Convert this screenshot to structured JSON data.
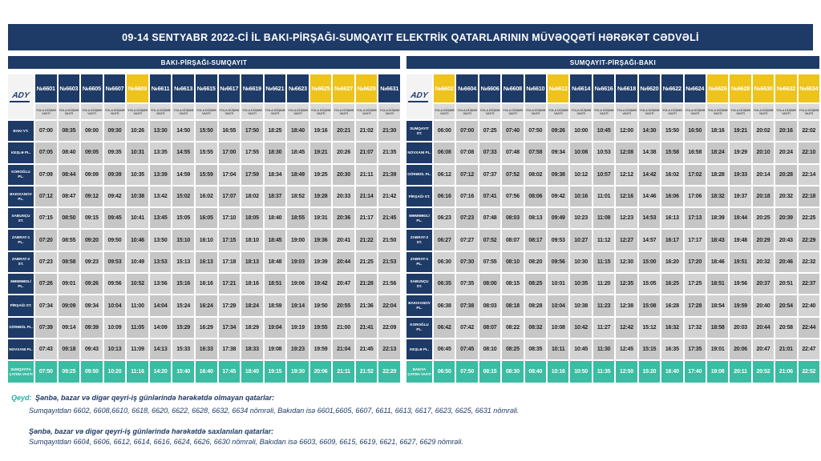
{
  "title": "09-14 SENTYABR 2022-Cİ İL BAKI-PİRŞAĞI-SUMQAYIT ELEKTRİK QATARLARININ MÜVƏQQƏTİ HƏRƏKƏT CƏDVƏLİ",
  "logo": "ADY",
  "departure_label": "YOLA DÜŞMƏ VAXTI",
  "colors": {
    "navy": "#1e3a66",
    "yellow": "#eec31c",
    "teal": "#3bbca3",
    "teal_dark": "#28b0a1",
    "cell_gray_light": "#d3d3d3",
    "cell_gray_dark": "#c6c6c6"
  },
  "tables": [
    {
      "header": "BAKI-PİRŞAĞI-SUMQAYIT",
      "trains": [
        {
          "number": "№6601",
          "highlight": false
        },
        {
          "number": "№6603",
          "highlight": false
        },
        {
          "number": "№6605",
          "highlight": false
        },
        {
          "number": "№6607",
          "highlight": false
        },
        {
          "number": "№6609",
          "highlight": true
        },
        {
          "number": "№6611",
          "highlight": false
        },
        {
          "number": "№6613",
          "highlight": false
        },
        {
          "number": "№6615",
          "highlight": false
        },
        {
          "number": "№6617",
          "highlight": false
        },
        {
          "number": "№6619",
          "highlight": false
        },
        {
          "number": "№6621",
          "highlight": false
        },
        {
          "number": "№6623",
          "highlight": false
        },
        {
          "number": "№6625",
          "highlight": true
        },
        {
          "number": "№6627",
          "highlight": true
        },
        {
          "number": "№6629",
          "highlight": true
        },
        {
          "number": "№6631",
          "highlight": false
        }
      ],
      "rows": [
        {
          "station": "BAKI VT.",
          "times": [
            "07:00",
            "08:35",
            "09:00",
            "09:30",
            "10:26",
            "13:30",
            "14:50",
            "15:50",
            "16:55",
            "17:50",
            "18:25",
            "18:40",
            "19:16",
            "20:21",
            "21:02",
            "21:30"
          ]
        },
        {
          "station": "KEŞLƏ PL.",
          "times": [
            "07:05",
            "08:40",
            "09:05",
            "09:35",
            "10:31",
            "13:35",
            "14:55",
            "15:55",
            "17:00",
            "17:55",
            "18:30",
            "18:45",
            "19:21",
            "20:26",
            "21:07",
            "21:35"
          ]
        },
        {
          "station": "KOROĞLU PL.",
          "times": [
            "07:09",
            "08:44",
            "09:09",
            "09:39",
            "10:35",
            "13:39",
            "14:59",
            "15:59",
            "17:04",
            "17:59",
            "18:34",
            "18:49",
            "19:25",
            "20:30",
            "21:11",
            "21:39"
          ]
        },
        {
          "station": "BAKIXANOV PL.",
          "times": [
            "07:12",
            "08:47",
            "09:12",
            "09:42",
            "10:38",
            "13:42",
            "15:02",
            "16:02",
            "17:07",
            "18:02",
            "18:37",
            "18:52",
            "19:28",
            "20:33",
            "21:14",
            "21:42"
          ]
        },
        {
          "station": "SABUNÇU ST.",
          "times": [
            "07:15",
            "08:50",
            "09:15",
            "09:45",
            "10:41",
            "13:45",
            "15:05",
            "16:05",
            "17:10",
            "18:05",
            "18:40",
            "18:55",
            "19:31",
            "20:36",
            "21:17",
            "21:45"
          ]
        },
        {
          "station": "ZABRAT-1 PL.",
          "times": [
            "07:20",
            "08:55",
            "09:20",
            "09:50",
            "10:46",
            "13:50",
            "15:10",
            "16:10",
            "17:15",
            "18:10",
            "18:45",
            "19:00",
            "19:36",
            "20:41",
            "21:22",
            "21:50"
          ]
        },
        {
          "station": "ZABRAT-2 ST.",
          "times": [
            "07:23",
            "08:58",
            "09:23",
            "09:53",
            "10:49",
            "13:53",
            "15:13",
            "16:13",
            "17:18",
            "18:13",
            "18:48",
            "19:03",
            "19:39",
            "20:44",
            "21:25",
            "21:53"
          ]
        },
        {
          "station": "MƏMMƏDLİ PL.",
          "times": [
            "07:26",
            "09:01",
            "09:26",
            "09:56",
            "10:52",
            "13:56",
            "15:16",
            "16:16",
            "17:21",
            "18:16",
            "18:51",
            "19:06",
            "19:42",
            "20:47",
            "21:28",
            "21:56"
          ]
        },
        {
          "station": "PİRŞAĞI ST.",
          "times": [
            "07:34",
            "09:09",
            "09:34",
            "10:04",
            "11:00",
            "14:04",
            "15:24",
            "16:24",
            "17:29",
            "18:24",
            "18:59",
            "19:14",
            "19:50",
            "20:55",
            "21:36",
            "22:04"
          ]
        },
        {
          "station": "GÖRƏDİL PL.",
          "times": [
            "07:39",
            "09:14",
            "09:39",
            "10:09",
            "11:05",
            "14:09",
            "15:29",
            "16:29",
            "17:34",
            "18:29",
            "19:04",
            "19:19",
            "19:55",
            "21:00",
            "21:41",
            "22:09"
          ]
        },
        {
          "station": "NOVXANI PL.",
          "times": [
            "07:43",
            "09:18",
            "09:43",
            "10:13",
            "11:09",
            "14:13",
            "15:33",
            "16:33",
            "17:38",
            "18:33",
            "19:08",
            "19:23",
            "19:59",
            "21:04",
            "21:45",
            "22:13"
          ]
        }
      ],
      "arrival": {
        "station": "SUMQAYITA ÇATMA VAXTI",
        "times": [
          "07:50",
          "09:25",
          "09:50",
          "10:20",
          "11:16",
          "14:20",
          "15:40",
          "16:40",
          "17:45",
          "18:40",
          "19:15",
          "19:30",
          "20:06",
          "21:11",
          "21:52",
          "22:20"
        ]
      }
    },
    {
      "header": "SUMQAYIT-PİRŞAĞI-BAKI",
      "trains": [
        {
          "number": "№6602",
          "highlight": true
        },
        {
          "number": "№6604",
          "highlight": false
        },
        {
          "number": "№6606",
          "highlight": false
        },
        {
          "number": "№6608",
          "highlight": false
        },
        {
          "number": "№6610",
          "highlight": false
        },
        {
          "number": "№6612",
          "highlight": true
        },
        {
          "number": "№6614",
          "highlight": false
        },
        {
          "number": "№6616",
          "highlight": false
        },
        {
          "number": "№6618",
          "highlight": false
        },
        {
          "number": "№6620",
          "highlight": false
        },
        {
          "number": "№6622",
          "highlight": false
        },
        {
          "number": "№6624",
          "highlight": false
        },
        {
          "number": "№6626",
          "highlight": true
        },
        {
          "number": "№6628",
          "highlight": true
        },
        {
          "number": "№6630",
          "highlight": true
        },
        {
          "number": "№6632",
          "highlight": true
        },
        {
          "number": "№6634",
          "highlight": true
        }
      ],
      "rows": [
        {
          "station": "SUMQAYIT ST.",
          "times": [
            "06:00",
            "07:00",
            "07:25",
            "07:40",
            "07:50",
            "09:26",
            "10:00",
            "10:45",
            "12:00",
            "14:30",
            "15:50",
            "16:50",
            "18:16",
            "19:21",
            "20:02",
            "20:16",
            "22:02"
          ]
        },
        {
          "station": "NOVXANI PL.",
          "times": [
            "06:08",
            "07:08",
            "07:33",
            "07:48",
            "07:58",
            "09:34",
            "10:08",
            "10:53",
            "12:08",
            "14:38",
            "15:58",
            "16:58",
            "18:24",
            "19:29",
            "20:10",
            "20:24",
            "22:10"
          ]
        },
        {
          "station": "GÖRƏDİL PL.",
          "times": [
            "06:12",
            "07:12",
            "07:37",
            "07:52",
            "08:02",
            "09:38",
            "10:12",
            "10:57",
            "12:12",
            "14:42",
            "16:02",
            "17:02",
            "18:28",
            "19:33",
            "20:14",
            "20:28",
            "22:14"
          ]
        },
        {
          "station": "PİRŞAĞI ST.",
          "times": [
            "06:16",
            "07:16",
            "07:41",
            "07:56",
            "08:06",
            "09:42",
            "10:16",
            "11:01",
            "12:16",
            "14:46",
            "16:06",
            "17:06",
            "18:32",
            "19:37",
            "20:18",
            "20:32",
            "22:18"
          ]
        },
        {
          "station": "MƏMMƏDLİ PL.",
          "times": [
            "06:23",
            "07:23",
            "07:48",
            "08:03",
            "08:13",
            "09:49",
            "10:23",
            "11:08",
            "12:23",
            "14:53",
            "16:13",
            "17:13",
            "18:39",
            "19:44",
            "20:25",
            "20:39",
            "22:25"
          ]
        },
        {
          "station": "ZABRAT-2 ST.",
          "times": [
            "06:27",
            "07:27",
            "07:52",
            "08:07",
            "08:17",
            "09:53",
            "10:27",
            "11:12",
            "12:27",
            "14:57",
            "16:17",
            "17:17",
            "18:43",
            "19:48",
            "20:29",
            "20:43",
            "22:29"
          ]
        },
        {
          "station": "ZABRAT-1 PL.",
          "times": [
            "06:30",
            "07:30",
            "07:55",
            "08:10",
            "08:20",
            "09:56",
            "10:30",
            "11:15",
            "12:30",
            "15:00",
            "16:20",
            "17:20",
            "18:46",
            "19:51",
            "20:32",
            "20:46",
            "22:32"
          ]
        },
        {
          "station": "SABUNÇU ST.",
          "times": [
            "06:35",
            "07:35",
            "08:00",
            "08:15",
            "08:25",
            "10:01",
            "10:35",
            "11:20",
            "12:35",
            "15:05",
            "16:25",
            "17:25",
            "18:51",
            "19:56",
            "20:37",
            "20:51",
            "22:37"
          ]
        },
        {
          "station": "BAKIXANOV PL.",
          "times": [
            "06:38",
            "07:38",
            "08:03",
            "08:18",
            "08:28",
            "10:04",
            "10:38",
            "11:23",
            "12:38",
            "15:08",
            "16:28",
            "17:28",
            "18:54",
            "19:59",
            "20:40",
            "20:54",
            "22:40"
          ]
        },
        {
          "station": "KOROĞLU PL.",
          "times": [
            "06:42",
            "07:42",
            "08:07",
            "08:22",
            "08:32",
            "10:08",
            "10:42",
            "11:27",
            "12:42",
            "15:12",
            "16:32",
            "17:32",
            "18:58",
            "20:03",
            "20:44",
            "20:58",
            "22:44"
          ]
        },
        {
          "station": "KEŞLƏ PL.",
          "times": [
            "06:45",
            "07:45",
            "08:10",
            "08:25",
            "08:35",
            "10:11",
            "10:45",
            "11:30",
            "12:45",
            "15:15",
            "16:35",
            "17:35",
            "19:01",
            "20:06",
            "20:47",
            "21:01",
            "22:47"
          ]
        }
      ],
      "arrival": {
        "station": "BAKIYA ÇATMA VAXTI",
        "times": [
          "06:50",
          "07:50",
          "08:15",
          "08:30",
          "08:40",
          "10:16",
          "10:50",
          "11:35",
          "12:50",
          "15:20",
          "16:40",
          "17:40",
          "19:06",
          "20:11",
          "20:52",
          "21:06",
          "22:52"
        ]
      }
    }
  ],
  "notes": {
    "qeyd_label": "Qeyd:",
    "note1_title": "Şənbə, bazar və digər qeyri-iş günlərində hərəkətdə olmayan qatarlar:",
    "note1_body": "Sumqayıtdan 6602, 6608,6610, 6618, 6620, 6622, 6628, 6632, 6634 nömrəli, Bakıdan isə 6601,6605, 6607, 6611, 6613, 6617, 6623, 6625, 6631 nömrəli.",
    "note2_title": "Şənbə, bazar və digər qeyri-iş günlərində hərəkətdə saxlanılan qatarlar:",
    "note2_body": "Sumqayıtdan 6604, 6606, 6612, 6614, 6616, 6624, 6626, 6630 nömrəli, Bakıdan isə 6603, 6609, 6615, 6619, 6621, 6627, 6629 nömrəli."
  }
}
